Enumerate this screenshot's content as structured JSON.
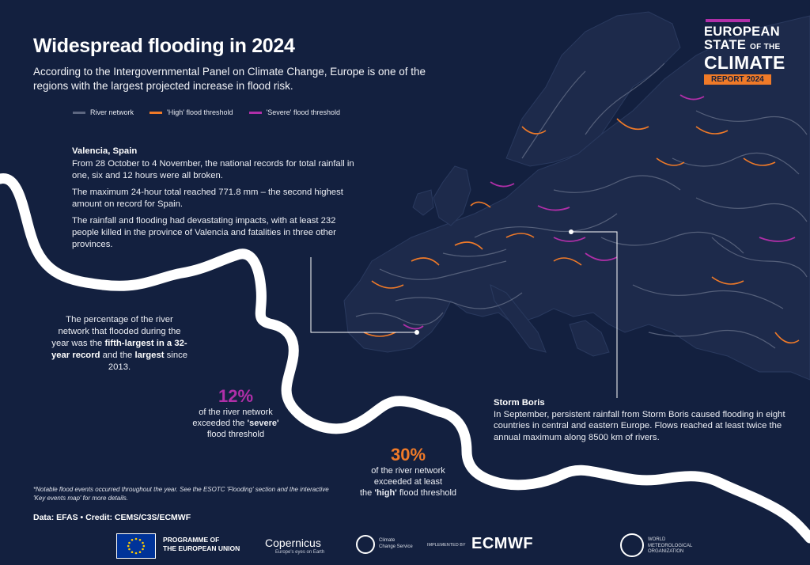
{
  "title": "Widespread flooding in 2024",
  "subtitle": "According to the Intergovernmental Panel on Climate Change, Europe is one of the regions with the largest projected increase in flood risk.",
  "legend": [
    {
      "label": "River network",
      "color": "#5c6680"
    },
    {
      "label": "'High' flood threshold",
      "color": "#f07a28"
    },
    {
      "label": "'Severe' flood threshold",
      "color": "#b02fa8"
    }
  ],
  "colors": {
    "background": "#13203f",
    "river": "#5c6680",
    "high": "#f07a28",
    "severe": "#b02fa8",
    "land": "#1d2a4b"
  },
  "valencia": {
    "heading": "Valencia, Spain",
    "p1": "From 28 October to 4 November, the national records for total rainfall in one, six and 12 hours were all broken.",
    "p2": "The maximum 24-hour total reached 771.8 mm – the second highest amount on record for Spain.",
    "p3": "The rainfall and flooding had devastating impacts, with at least 232 people killed in the province of Valencia and fatalities in three other provinces."
  },
  "percentage_note": {
    "pre": "The percentage of the river network that flooded during the year was the ",
    "bold1": "fifth-largest in a 32-year record",
    "mid": " and the ",
    "bold2": "largest",
    "post": " since 2013."
  },
  "stat_severe": {
    "value": "12%",
    "line1": "of the river network",
    "line2_pre": "exceeded the ",
    "line2_bold": "'severe'",
    "line3": "flood threshold",
    "color": "#b02fa8"
  },
  "stat_high": {
    "value": "30%",
    "line1": "of the river network",
    "line2": "exceeded at least",
    "line3_pre": "the ",
    "line3_bold": "'high'",
    "line3_post": " flood threshold",
    "color": "#f07a28"
  },
  "boris": {
    "heading": "Storm Boris",
    "text": "In September, persistent rainfall from Storm Boris caused flooding in eight countries in central and eastern Europe. Flows reached at least twice the annual maximum along 8500 km of rivers."
  },
  "footnote": "*Notable flood events occurred throughout the year. See the ESOTC 'Flooding' section and the interactive 'Key events map' for more details.",
  "credit": "Data: EFAS • Credit: CEMS/C3S/ECMWF",
  "brand": {
    "line1": "EUROPEAN",
    "line2a": "STATE",
    "line2b": "OF THE",
    "line3": "CLIMATE",
    "tag": "REPORT 2024",
    "accent_bar": "#b02fa8",
    "tag_color": "#f07a28"
  },
  "logos": {
    "eu_line1": "PROGRAMME OF",
    "eu_line2": "THE EUROPEAN UNION",
    "copernicus": "opernicus",
    "copernicus_sub": "Europe's eyes on Earth",
    "c3s_line1": "Climate",
    "c3s_line2": "Change Service",
    "implemented": "IMPLEMENTED BY",
    "ecmwf": "ECMWF",
    "wmo_line1": "WORLD",
    "wmo_line2": "METEOROLOGICAL",
    "wmo_line3": "ORGANIZATION"
  }
}
